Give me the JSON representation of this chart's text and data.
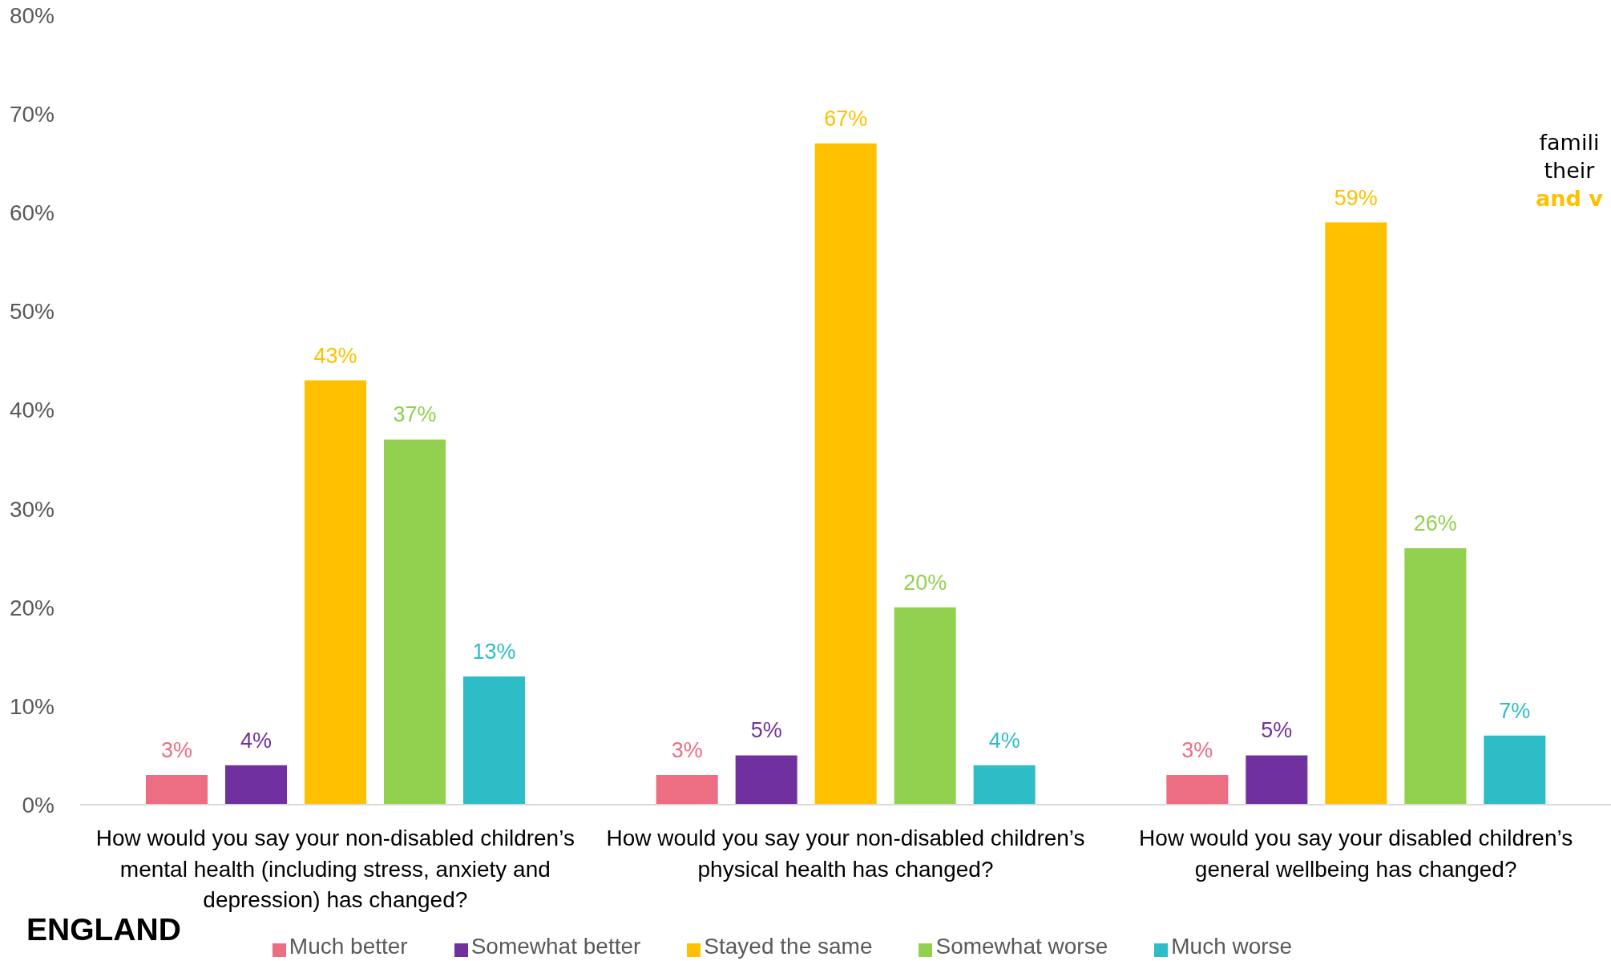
{
  "chart_data": {
    "type": "bar",
    "categories": [
      "How would you say your non-disabled children’s mental health (including stress, anxiety and depression) has changed?",
      "How would you say your non-disabled children’s physical health has changed?",
      "How would you say your disabled children’s general wellbeing has changed?"
    ],
    "series": [
      {
        "name": "Much better",
        "color": "#ed6d82",
        "values": [
          3,
          3,
          3
        ],
        "value_labels": [
          "3%",
          "3%",
          "3%"
        ]
      },
      {
        "name": "Somewhat better",
        "color": "#7030a0",
        "values": [
          4,
          5,
          5
        ],
        "value_labels": [
          "4%",
          "5%",
          "5%"
        ]
      },
      {
        "name": "Stayed the same",
        "color": "#ffc000",
        "values": [
          43,
          67,
          59
        ],
        "value_labels": [
          "43%",
          "67%",
          "59%"
        ]
      },
      {
        "name": "Somewhat worse",
        "color": "#92d050",
        "values": [
          37,
          20,
          26
        ],
        "value_labels": [
          "37%",
          "20%",
          "26%"
        ]
      },
      {
        "name": "Much worse",
        "color": "#2ebdc6",
        "values": [
          13,
          4,
          7
        ],
        "value_labels": [
          "13%",
          "4%",
          "7%"
        ]
      }
    ],
    "ylim": [
      0,
      80
    ],
    "yticks": [
      {
        "value": 0,
        "label": "0%"
      },
      {
        "value": 10,
        "label": "10%"
      },
      {
        "value": 20,
        "label": "20%"
      },
      {
        "value": 30,
        "label": "30%"
      },
      {
        "value": 40,
        "label": "40%"
      },
      {
        "value": 50,
        "label": "50%"
      },
      {
        "value": 60,
        "label": "60%"
      },
      {
        "value": 70,
        "label": "70%"
      },
      {
        "value": 80,
        "label": "80%"
      }
    ],
    "legend": "bottom",
    "annotations": [
      "famili",
      "their",
      "and v",
      "ENGLAND"
    ]
  }
}
